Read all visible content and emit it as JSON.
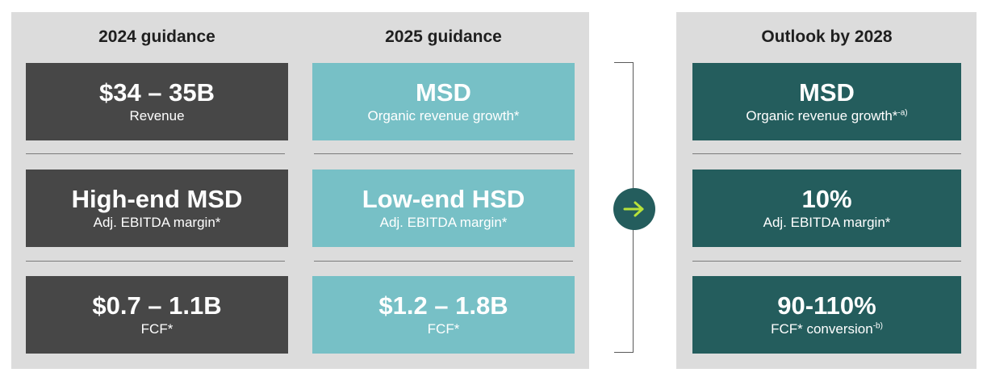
{
  "columns": {
    "guidance_2024": {
      "header": "2024 guidance",
      "cards": [
        {
          "value": "$34 – 35B",
          "label": "Revenue"
        },
        {
          "value": "High-end MSD",
          "label": "Adj. EBITDA margin*"
        },
        {
          "value": "$0.7 – 1.1B",
          "label": "FCF*"
        }
      ]
    },
    "guidance_2025": {
      "header": "2025 guidance",
      "cards": [
        {
          "value": "MSD",
          "label": "Organic revenue growth*"
        },
        {
          "value": "Low-end HSD",
          "label": "Adj. EBITDA margin*"
        },
        {
          "value": "$1.2 – 1.8B",
          "label": "FCF*"
        }
      ]
    },
    "outlook_2028": {
      "header": "Outlook by 2028",
      "cards": [
        {
          "value": "MSD",
          "label": "Organic revenue growth*",
          "footnote": "-a)"
        },
        {
          "value": "10%",
          "label": "Adj. EBITDA margin*"
        },
        {
          "value": "90-110%",
          "label": "FCF* conversion",
          "footnote": "-b)"
        }
      ]
    }
  },
  "icons": {
    "transition": "arrow-right-icon"
  },
  "colors": {
    "panel_bg": "#dcdcdc",
    "dark_card": "#474747",
    "teal_card": "#77c0c6",
    "outlook_card": "#245d5d",
    "arrow_accent": "#b7e23a"
  }
}
